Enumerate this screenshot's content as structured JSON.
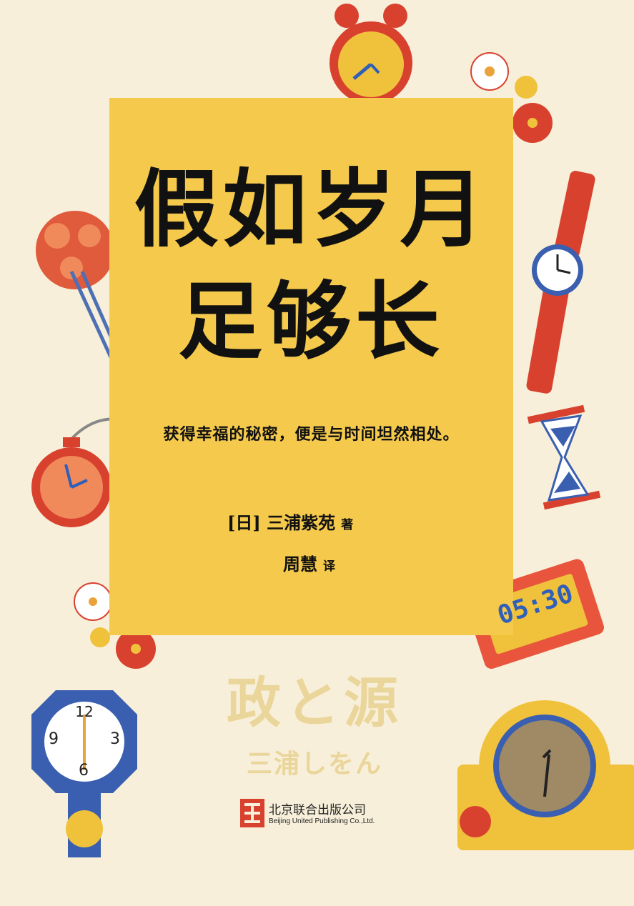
{
  "cover": {
    "title_line1": "假如岁月",
    "title_line2": "足够长",
    "subtitle": "获得幸福的秘密，便是与时间坦然相处。",
    "author": "[日] 三浦紫苑",
    "author_role": "著",
    "translator": "周慧",
    "translator_role": "译",
    "original_title": "政と源",
    "original_author": "三浦しをん"
  },
  "publisher": {
    "name_cn": "北京联合出版公司",
    "name_en": "Beijing United Publishing Co.,Ltd."
  },
  "decorations": {
    "digital_clock_time": "05:30",
    "pendulum_clock_numbers": [
      "12",
      "3",
      "6",
      "9"
    ]
  },
  "colors": {
    "background": "#f7efd9",
    "panel": "#f4c94c",
    "ink": "#111111",
    "faded_title": "#ead59a",
    "red": "#d9412f",
    "blue": "#2f5fb8"
  }
}
